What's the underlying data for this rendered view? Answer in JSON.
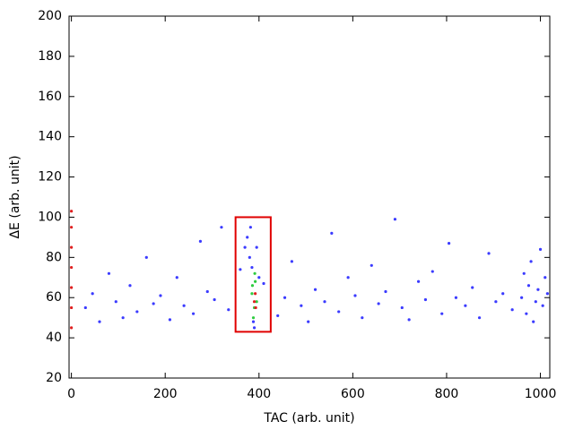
{
  "chart_data": {
    "type": "scatter",
    "x_label": "TAC (arb. unit)",
    "y_label": "ΔE (arb. unit)",
    "xlim": [
      -5,
      1020
    ],
    "ylim": [
      20,
      200
    ],
    "xticks": [
      0,
      200,
      400,
      600,
      800,
      1000
    ],
    "yticks": [
      20,
      40,
      60,
      80,
      100,
      120,
      140,
      160,
      180,
      200
    ],
    "region": {
      "x": [
        350,
        425
      ],
      "y": [
        43,
        100
      ],
      "color": "#e00000"
    },
    "series": [
      {
        "color": "#3b3bff",
        "x": [
          30,
          45,
          60,
          80,
          95,
          110,
          125,
          140,
          160,
          175,
          190,
          210,
          225,
          240,
          260,
          275,
          290,
          305,
          320,
          335,
          360,
          370,
          410,
          440,
          455,
          470,
          490,
          505,
          520,
          540,
          555,
          570,
          590,
          605,
          620,
          640,
          655,
          670,
          690,
          705,
          720,
          740,
          755,
          770,
          790,
          805,
          820,
          840,
          855,
          870,
          890,
          905,
          920,
          940,
          960,
          965,
          970,
          975,
          980,
          985,
          990,
          995,
          1000,
          1005,
          1010,
          1015,
          375,
          380,
          385,
          390,
          395,
          400,
          382,
          388
        ],
        "values": [
          55,
          62,
          48,
          72,
          58,
          50,
          66,
          53,
          80,
          57,
          61,
          49,
          70,
          56,
          52,
          88,
          63,
          59,
          95,
          54,
          74,
          85,
          67,
          51,
          60,
          78,
          56,
          48,
          64,
          58,
          92,
          53,
          70,
          61,
          50,
          76,
          57,
          63,
          99,
          55,
          49,
          68,
          59,
          73,
          52,
          87,
          60,
          56,
          65,
          50,
          82,
          58,
          62,
          54,
          60,
          72,
          52,
          66,
          78,
          48,
          58,
          64,
          84,
          56,
          70,
          62,
          90,
          80,
          75,
          45,
          85,
          70,
          95,
          48
        ]
      },
      {
        "color": "#2ecc40",
        "x": [
          385,
          390,
          392,
          388,
          395,
          386,
          391
        ],
        "values": [
          62,
          55,
          68,
          50,
          58,
          66,
          72
        ]
      },
      {
        "color": "#e02020",
        "x": [
          390,
          392,
          393,
          0,
          0,
          0,
          0,
          0,
          0,
          0
        ],
        "values": [
          58,
          62,
          55,
          45,
          55,
          65,
          75,
          85,
          95,
          103
        ]
      }
    ]
  }
}
